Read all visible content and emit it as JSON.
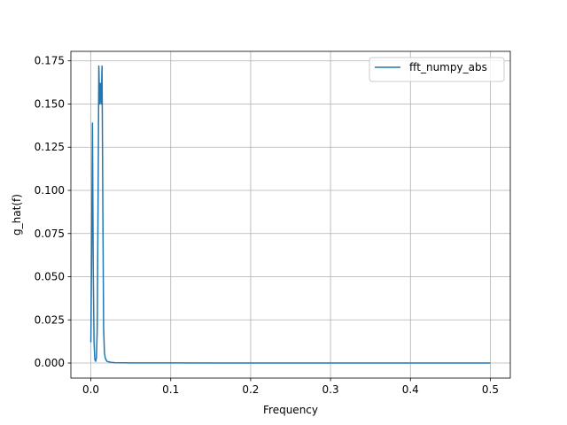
{
  "chart_data": {
    "type": "line",
    "title": "",
    "xlabel": "Frequency",
    "ylabel": "g_hat(f)",
    "xlim": [
      -0.025,
      0.525
    ],
    "ylim": [
      -0.0087,
      0.1805
    ],
    "xticks": [
      0.0,
      0.1,
      0.2,
      0.3,
      0.4,
      0.5
    ],
    "xtick_labels": [
      "0.0",
      "0.1",
      "0.2",
      "0.3",
      "0.4",
      "0.5"
    ],
    "yticks": [
      0.0,
      0.025,
      0.05,
      0.075,
      0.1,
      0.125,
      0.15,
      0.175
    ],
    "ytick_labels": [
      "0.000",
      "0.025",
      "0.050",
      "0.075",
      "0.100",
      "0.125",
      "0.150",
      "0.175"
    ],
    "grid": true,
    "legend_position": "top-right",
    "series": [
      {
        "name": "fft_numpy_abs",
        "color": "#1f77b4",
        "x": [
          0.0,
          0.001,
          0.002,
          0.003,
          0.004,
          0.005,
          0.006,
          0.007,
          0.008,
          0.009,
          0.01,
          0.011,
          0.012,
          0.013,
          0.014,
          0.015,
          0.016,
          0.017,
          0.018,
          0.02,
          0.025,
          0.03,
          0.05,
          0.1,
          0.2,
          0.3,
          0.4,
          0.5
        ],
        "y": [
          0.012,
          0.065,
          0.139,
          0.055,
          0.012,
          0.002,
          0.001,
          0.003,
          0.02,
          0.09,
          0.172,
          0.15,
          0.162,
          0.15,
          0.172,
          0.09,
          0.02,
          0.006,
          0.003,
          0.001,
          0.0004,
          0.0002,
          0.0001,
          5e-05,
          2e-05,
          1e-05,
          5e-06,
          0.0
        ]
      }
    ]
  }
}
